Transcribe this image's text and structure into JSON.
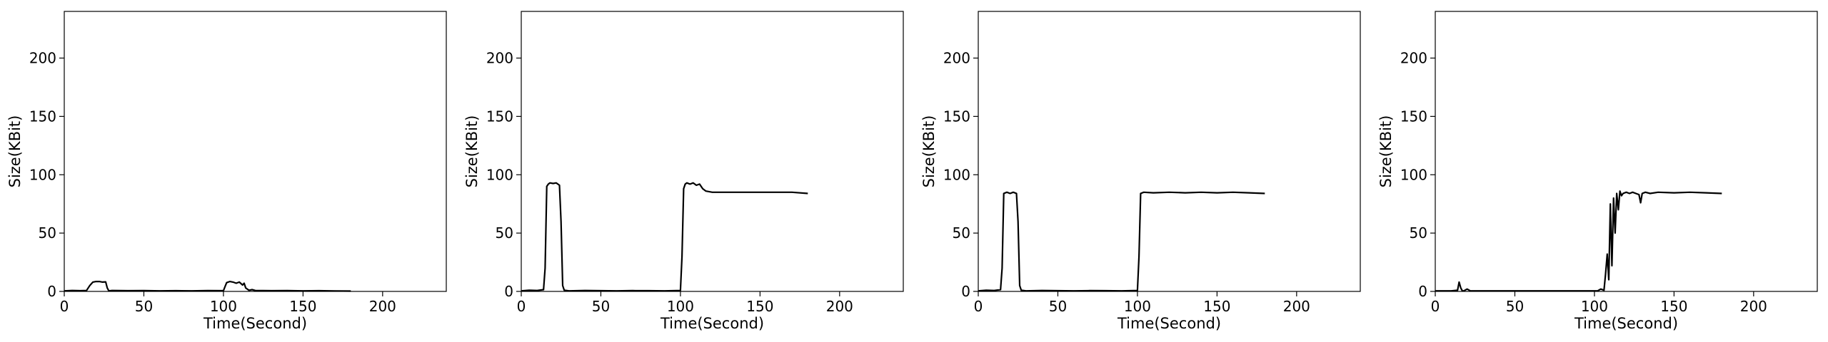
{
  "chart_data": [
    {
      "type": "line",
      "xlabel": "Time(Second)",
      "ylabel": "Size(KBit)",
      "xlim": [
        0,
        240
      ],
      "ylim": [
        0,
        240
      ],
      "xticks": [
        0,
        50,
        100,
        150,
        200
      ],
      "yticks": [
        0,
        50,
        100,
        150,
        200
      ],
      "grid": false,
      "series": [
        {
          "color": "#000000",
          "x": [
            0,
            5,
            10,
            14,
            16,
            18,
            20,
            22,
            24,
            26,
            27,
            28,
            30,
            40,
            50,
            60,
            70,
            80,
            90,
            100,
            101,
            102,
            104,
            106,
            108,
            110,
            112,
            113,
            114,
            116,
            118,
            120,
            130,
            140,
            150,
            160,
            170,
            180
          ],
          "y": [
            0.5,
            0.8,
            0.6,
            0.8,
            5,
            8,
            8.5,
            8.5,
            8,
            8.2,
            3,
            0.5,
            0.8,
            0.6,
            0.7,
            0.5,
            0.6,
            0.5,
            0.7,
            0.6,
            4,
            7.5,
            8.5,
            8,
            7,
            8,
            5.5,
            7,
            3,
            1,
            1.5,
            0.8,
            0.6,
            0.7,
            0.5,
            0.6,
            0.4,
            0.3
          ]
        }
      ]
    },
    {
      "type": "line",
      "xlabel": "Time(Second)",
      "ylabel": "Size(KBit)",
      "xlim": [
        0,
        240
      ],
      "ylim": [
        0,
        240
      ],
      "xticks": [
        0,
        50,
        100,
        150,
        200
      ],
      "yticks": [
        0,
        50,
        100,
        150,
        200
      ],
      "grid": false,
      "series": [
        {
          "color": "#000000",
          "x": [
            0,
            5,
            10,
            14,
            15,
            16,
            17,
            18,
            20,
            22,
            24,
            25,
            26,
            27,
            30,
            40,
            50,
            60,
            70,
            80,
            90,
            100,
            101,
            102,
            103,
            104,
            106,
            108,
            110,
            112,
            114,
            116,
            120,
            130,
            140,
            150,
            160,
            170,
            180
          ],
          "y": [
            0.5,
            1,
            0.8,
            1.5,
            20,
            90,
            92,
            93,
            92.5,
            93,
            91,
            60,
            5,
            1,
            0.5,
            0.8,
            0.6,
            0.5,
            0.7,
            0.6,
            0.5,
            0.8,
            30,
            88,
            92,
            93,
            92,
            93,
            91,
            92,
            88,
            86,
            85,
            85,
            85,
            85,
            85,
            85,
            84
          ]
        }
      ]
    },
    {
      "type": "line",
      "xlabel": "Time(Second)",
      "ylabel": "Size(KBit)",
      "xlim": [
        0,
        240
      ],
      "ylim": [
        0,
        240
      ],
      "xticks": [
        0,
        50,
        100,
        150,
        200
      ],
      "yticks": [
        0,
        50,
        100,
        150,
        200
      ],
      "grid": false,
      "series": [
        {
          "color": "#000000",
          "x": [
            0,
            5,
            10,
            14,
            15,
            16,
            18,
            20,
            22,
            24,
            25,
            26,
            27,
            30,
            40,
            50,
            60,
            70,
            80,
            90,
            100,
            101,
            102,
            104,
            110,
            120,
            130,
            140,
            150,
            160,
            170,
            180
          ],
          "y": [
            0.5,
            1,
            0.8,
            1.5,
            20,
            84,
            85,
            84,
            85,
            84,
            60,
            5,
            1,
            0.5,
            0.8,
            0.6,
            0.5,
            0.7,
            0.6,
            0.5,
            0.8,
            30,
            84,
            85,
            84.5,
            85,
            84.5,
            85,
            84.5,
            85,
            84.5,
            84
          ]
        }
      ]
    },
    {
      "type": "line",
      "xlabel": "Time(Second)",
      "ylabel": "Size(KBit)",
      "xlim": [
        0,
        240
      ],
      "ylim": [
        0,
        240
      ],
      "xticks": [
        0,
        50,
        100,
        150,
        200
      ],
      "yticks": [
        0,
        50,
        100,
        150,
        200
      ],
      "grid": false,
      "series": [
        {
          "color": "#000000",
          "x": [
            0,
            10,
            14,
            15,
            16,
            17,
            18,
            20,
            22,
            30,
            50,
            80,
            100,
            102,
            104,
            106,
            107,
            108,
            109,
            110,
            111,
            112,
            113,
            114,
            115,
            116,
            117,
            118,
            120,
            122,
            124,
            126,
            128,
            129,
            130,
            132,
            135,
            140,
            150,
            160,
            170,
            180
          ],
          "y": [
            0.5,
            0.5,
            1,
            8,
            3,
            0.5,
            0.5,
            2,
            0.5,
            0.5,
            0.5,
            0.5,
            0.5,
            0.5,
            2,
            1,
            15,
            32,
            10,
            75,
            22,
            80,
            50,
            84,
            70,
            86,
            82,
            84,
            85,
            84,
            85,
            84,
            83,
            76,
            84,
            85,
            84,
            85,
            84.5,
            85,
            84.5,
            84
          ]
        }
      ]
    }
  ]
}
